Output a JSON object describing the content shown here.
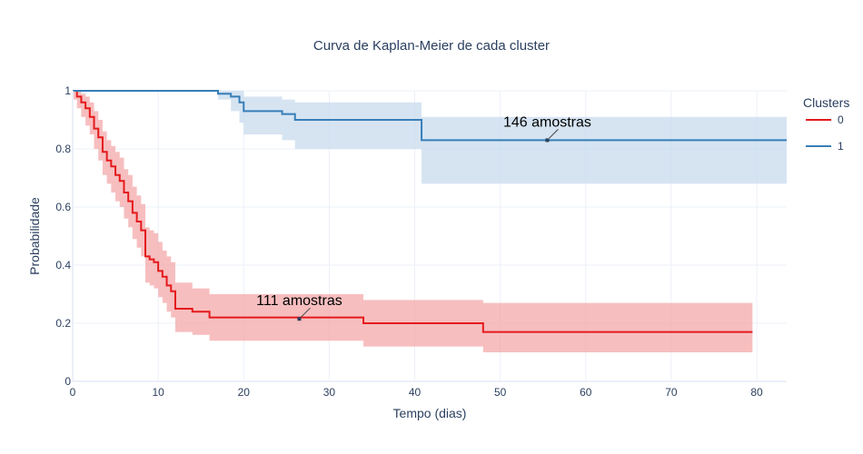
{
  "chart_data": {
    "type": "line",
    "title": "Curva de Kaplan-Meier de cada cluster",
    "xlabel": "Tempo (dias)",
    "ylabel": "Probabilidade",
    "xlim": [
      0,
      83.5
    ],
    "ylim": [
      0,
      1
    ],
    "x_ticks": [
      0,
      10,
      20,
      30,
      40,
      50,
      60,
      70,
      80
    ],
    "y_ticks": [
      0,
      0.2,
      0.4,
      0.6,
      0.8,
      1
    ],
    "y_tick_labels": [
      "0",
      "0.2",
      "0.4",
      "0.6",
      "0.8",
      "1"
    ],
    "grid": true,
    "legend": {
      "title": "Clusters",
      "position": "right"
    },
    "series": [
      {
        "name": "0",
        "color": "#e41a1c",
        "band_color": "#f4a3a4",
        "steps": [
          [
            0,
            1
          ],
          [
            0.5,
            0.98
          ],
          [
            1,
            0.96
          ],
          [
            1.5,
            0.94
          ],
          [
            2,
            0.91
          ],
          [
            2.5,
            0.87
          ],
          [
            3,
            0.84
          ],
          [
            3.5,
            0.79
          ],
          [
            4,
            0.76
          ],
          [
            4.5,
            0.74
          ],
          [
            5,
            0.71
          ],
          [
            5.5,
            0.69
          ],
          [
            6,
            0.65
          ],
          [
            6.5,
            0.62
          ],
          [
            7,
            0.58
          ],
          [
            7.5,
            0.55
          ],
          [
            8,
            0.52
          ],
          [
            8.5,
            0.43
          ],
          [
            9,
            0.42
          ],
          [
            9.5,
            0.41
          ],
          [
            10,
            0.38
          ],
          [
            10.5,
            0.36
          ],
          [
            11,
            0.33
          ],
          [
            11.5,
            0.31
          ],
          [
            12,
            0.25
          ],
          [
            14,
            0.24
          ],
          [
            16,
            0.22
          ],
          [
            31,
            0.22
          ],
          [
            34,
            0.2
          ],
          [
            45,
            0.2
          ],
          [
            48,
            0.17
          ],
          [
            79.5,
            0.17
          ]
        ],
        "band_upper": [
          [
            0,
            1
          ],
          [
            0.5,
            1
          ],
          [
            1,
            0.99
          ],
          [
            1.5,
            0.98
          ],
          [
            2,
            0.96
          ],
          [
            2.5,
            0.93
          ],
          [
            3,
            0.9
          ],
          [
            3.5,
            0.86
          ],
          [
            4,
            0.83
          ],
          [
            4.5,
            0.81
          ],
          [
            5,
            0.79
          ],
          [
            5.5,
            0.77
          ],
          [
            6,
            0.73
          ],
          [
            6.5,
            0.71
          ],
          [
            7,
            0.67
          ],
          [
            7.5,
            0.64
          ],
          [
            8,
            0.61
          ],
          [
            8.5,
            0.53
          ],
          [
            9,
            0.52
          ],
          [
            9.5,
            0.51
          ],
          [
            10,
            0.48
          ],
          [
            10.5,
            0.45
          ],
          [
            11,
            0.43
          ],
          [
            11.5,
            0.41
          ],
          [
            12,
            0.34
          ],
          [
            14,
            0.32
          ],
          [
            16,
            0.3
          ],
          [
            31,
            0.3
          ],
          [
            34,
            0.28
          ],
          [
            45,
            0.28
          ],
          [
            48,
            0.27
          ],
          [
            79.5,
            0.27
          ]
        ],
        "band_lower": [
          [
            0,
            0.97
          ],
          [
            0.5,
            0.94
          ],
          [
            1,
            0.91
          ],
          [
            1.5,
            0.88
          ],
          [
            2,
            0.85
          ],
          [
            2.5,
            0.8
          ],
          [
            3,
            0.76
          ],
          [
            3.5,
            0.71
          ],
          [
            4,
            0.68
          ],
          [
            4.5,
            0.65
          ],
          [
            5,
            0.62
          ],
          [
            5.5,
            0.6
          ],
          [
            6,
            0.56
          ],
          [
            6.5,
            0.53
          ],
          [
            7,
            0.49
          ],
          [
            7.5,
            0.46
          ],
          [
            8,
            0.43
          ],
          [
            8.5,
            0.34
          ],
          [
            9,
            0.33
          ],
          [
            9.5,
            0.32
          ],
          [
            10,
            0.29
          ],
          [
            10.5,
            0.27
          ],
          [
            11,
            0.24
          ],
          [
            11.5,
            0.22
          ],
          [
            12,
            0.17
          ],
          [
            14,
            0.16
          ],
          [
            16,
            0.14
          ],
          [
            31,
            0.14
          ],
          [
            34,
            0.12
          ],
          [
            45,
            0.12
          ],
          [
            48,
            0.1
          ],
          [
            79.5,
            0.1
          ]
        ],
        "annotation": {
          "text": "111 amostras",
          "x": 26.5,
          "y": 0.215
        }
      },
      {
        "name": "1",
        "color": "#377eb8",
        "band_color": "#c4d8ec",
        "steps": [
          [
            0,
            1
          ],
          [
            16,
            1
          ],
          [
            17,
            0.99
          ],
          [
            18.5,
            0.98
          ],
          [
            19.5,
            0.96
          ],
          [
            20,
            0.93
          ],
          [
            24.5,
            0.92
          ],
          [
            26,
            0.9
          ],
          [
            40,
            0.9
          ],
          [
            40.8,
            0.83
          ],
          [
            83.5,
            0.83
          ]
        ],
        "band_upper": [
          [
            0,
            1
          ],
          [
            16,
            1
          ],
          [
            17,
            1
          ],
          [
            18.5,
            1
          ],
          [
            19.5,
            1
          ],
          [
            20,
            0.98
          ],
          [
            24.5,
            0.97
          ],
          [
            26,
            0.96
          ],
          [
            40,
            0.96
          ],
          [
            40.8,
            0.91
          ],
          [
            83.5,
            0.91
          ]
        ],
        "band_lower": [
          [
            0,
            1
          ],
          [
            16,
            1
          ],
          [
            17,
            0.97
          ],
          [
            18.5,
            0.93
          ],
          [
            19.5,
            0.89
          ],
          [
            20,
            0.85
          ],
          [
            24.5,
            0.83
          ],
          [
            26,
            0.8
          ],
          [
            40,
            0.8
          ],
          [
            40.8,
            0.68
          ],
          [
            83.5,
            0.68
          ]
        ],
        "annotation": {
          "text": "146 amostras",
          "x": 55.5,
          "y": 0.83
        }
      }
    ]
  }
}
